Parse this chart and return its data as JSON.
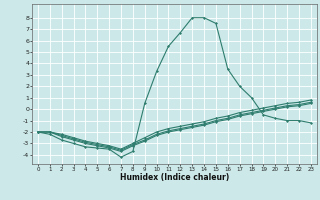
{
  "title": "",
  "xlabel": "Humidex (Indice chaleur)",
  "ylabel": "",
  "bg_color": "#cce8e8",
  "line_color": "#2e7d6e",
  "grid_color": "#ffffff",
  "xlim": [
    -0.5,
    23.5
  ],
  "ylim": [
    -4.8,
    9.2
  ],
  "xticks": [
    0,
    1,
    2,
    3,
    4,
    5,
    6,
    7,
    8,
    9,
    10,
    11,
    12,
    13,
    14,
    15,
    16,
    17,
    18,
    19,
    20,
    21,
    22,
    23
  ],
  "yticks": [
    -4,
    -3,
    -2,
    -1,
    0,
    1,
    2,
    3,
    4,
    5,
    6,
    7,
    8
  ],
  "series1": [
    [
      0,
      -2.0
    ],
    [
      1,
      -2.2
    ],
    [
      2,
      -2.7
    ],
    [
      3,
      -3.0
    ],
    [
      4,
      -3.3
    ],
    [
      5,
      -3.4
    ],
    [
      6,
      -3.5
    ],
    [
      7,
      -4.2
    ],
    [
      8,
      -3.7
    ],
    [
      9,
      0.5
    ],
    [
      10,
      3.3
    ],
    [
      11,
      5.5
    ],
    [
      12,
      6.7
    ],
    [
      13,
      8.0
    ],
    [
      14,
      8.0
    ],
    [
      15,
      7.5
    ],
    [
      16,
      3.5
    ],
    [
      17,
      2.0
    ],
    [
      18,
      1.0
    ],
    [
      19,
      -0.5
    ],
    [
      20,
      -0.8
    ],
    [
      21,
      -1.0
    ],
    [
      22,
      -1.0
    ],
    [
      23,
      -1.2
    ]
  ],
  "series2": [
    [
      0,
      -2.0
    ],
    [
      1,
      -2.0
    ],
    [
      2,
      -2.2
    ],
    [
      3,
      -2.5
    ],
    [
      4,
      -2.8
    ],
    [
      5,
      -3.0
    ],
    [
      6,
      -3.2
    ],
    [
      7,
      -3.5
    ],
    [
      8,
      -3.0
    ],
    [
      9,
      -2.5
    ],
    [
      10,
      -2.0
    ],
    [
      11,
      -1.7
    ],
    [
      12,
      -1.5
    ],
    [
      13,
      -1.3
    ],
    [
      14,
      -1.1
    ],
    [
      15,
      -0.8
    ],
    [
      16,
      -0.6
    ],
    [
      17,
      -0.3
    ],
    [
      18,
      -0.1
    ],
    [
      19,
      0.1
    ],
    [
      20,
      0.3
    ],
    [
      21,
      0.5
    ],
    [
      22,
      0.6
    ],
    [
      23,
      0.8
    ]
  ],
  "series3": [
    [
      0,
      -2.0
    ],
    [
      1,
      -2.0
    ],
    [
      2,
      -2.3
    ],
    [
      3,
      -2.6
    ],
    [
      4,
      -2.9
    ],
    [
      5,
      -3.1
    ],
    [
      6,
      -3.3
    ],
    [
      7,
      -3.6
    ],
    [
      8,
      -3.1
    ],
    [
      9,
      -2.7
    ],
    [
      10,
      -2.2
    ],
    [
      11,
      -1.9
    ],
    [
      12,
      -1.7
    ],
    [
      13,
      -1.5
    ],
    [
      14,
      -1.3
    ],
    [
      15,
      -1.0
    ],
    [
      16,
      -0.8
    ],
    [
      17,
      -0.5
    ],
    [
      18,
      -0.3
    ],
    [
      19,
      -0.1
    ],
    [
      20,
      0.1
    ],
    [
      21,
      0.3
    ],
    [
      22,
      0.4
    ],
    [
      23,
      0.6
    ]
  ],
  "series4": [
    [
      0,
      -2.0
    ],
    [
      1,
      -2.0
    ],
    [
      2,
      -2.4
    ],
    [
      3,
      -2.7
    ],
    [
      4,
      -3.0
    ],
    [
      5,
      -3.2
    ],
    [
      6,
      -3.4
    ],
    [
      7,
      -3.7
    ],
    [
      8,
      -3.2
    ],
    [
      9,
      -2.8
    ],
    [
      10,
      -2.3
    ],
    [
      11,
      -2.0
    ],
    [
      12,
      -1.8
    ],
    [
      13,
      -1.6
    ],
    [
      14,
      -1.4
    ],
    [
      15,
      -1.1
    ],
    [
      16,
      -0.9
    ],
    [
      17,
      -0.6
    ],
    [
      18,
      -0.4
    ],
    [
      19,
      -0.2
    ],
    [
      20,
      0.0
    ],
    [
      21,
      0.2
    ],
    [
      22,
      0.3
    ],
    [
      23,
      0.5
    ]
  ]
}
